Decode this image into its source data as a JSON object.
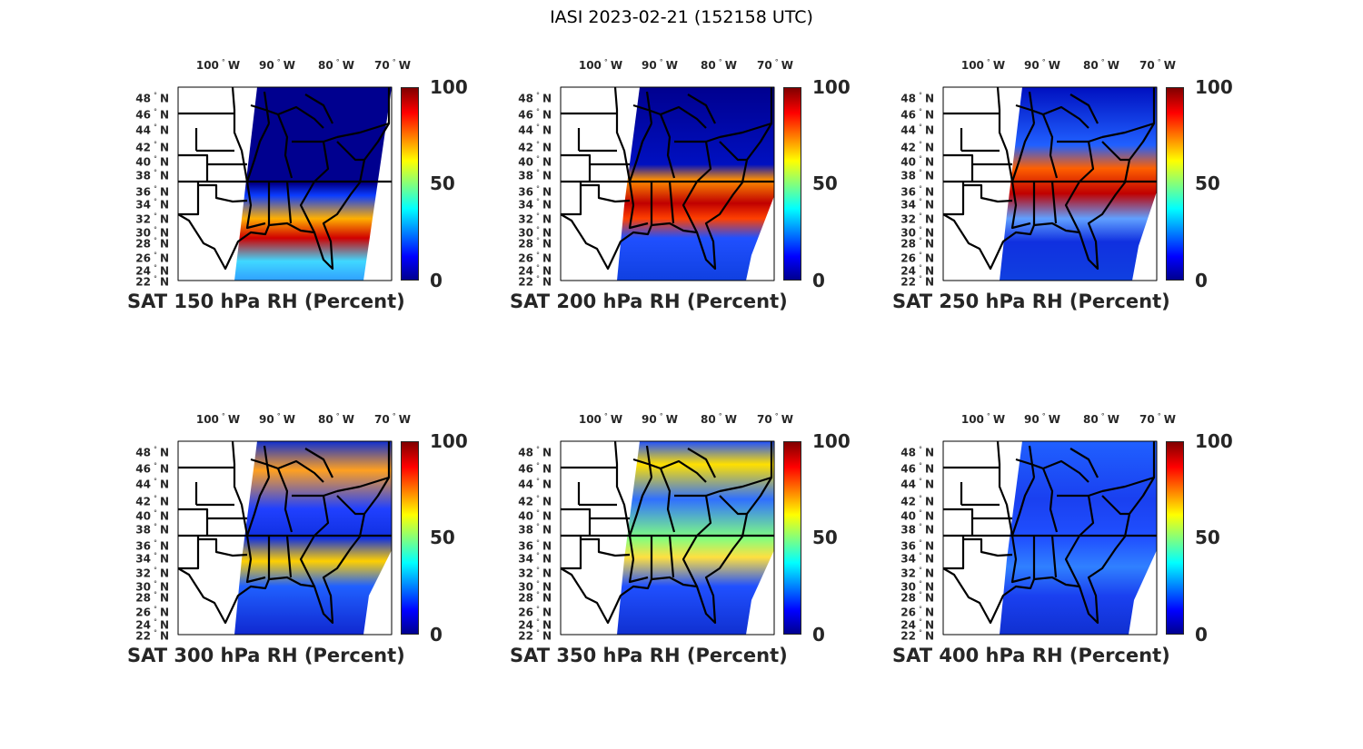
{
  "figure_title": "IASI 2023-02-21 (152158 UTC)",
  "chart_data": {
    "type": "map",
    "lon_ticks": [
      "100° W",
      "90° W",
      "80° W",
      "70° W"
    ],
    "lat_ticks": [
      "48° N",
      "46° N",
      "44° N",
      "42° N",
      "40° N",
      "38° N",
      "36° N",
      "34° N",
      "32° N",
      "30° N",
      "28° N",
      "26° N",
      "24° N",
      "22° N"
    ],
    "colorbar": {
      "colormap": "jet",
      "range": [
        0,
        100
      ],
      "ticks": [
        "100",
        "50",
        "0"
      ]
    },
    "panels": [
      {
        "title": "SAT 150 hPa RH (Percent)"
      },
      {
        "title": "SAT 200 hPa RH (Percent)"
      },
      {
        "title": "SAT 250 hPa RH (Percent)"
      },
      {
        "title": "SAT 300 hPa RH (Percent)"
      },
      {
        "title": "SAT 350 hPa RH (Percent)"
      },
      {
        "title": "SAT 400 hPa RH (Percent)"
      }
    ]
  }
}
